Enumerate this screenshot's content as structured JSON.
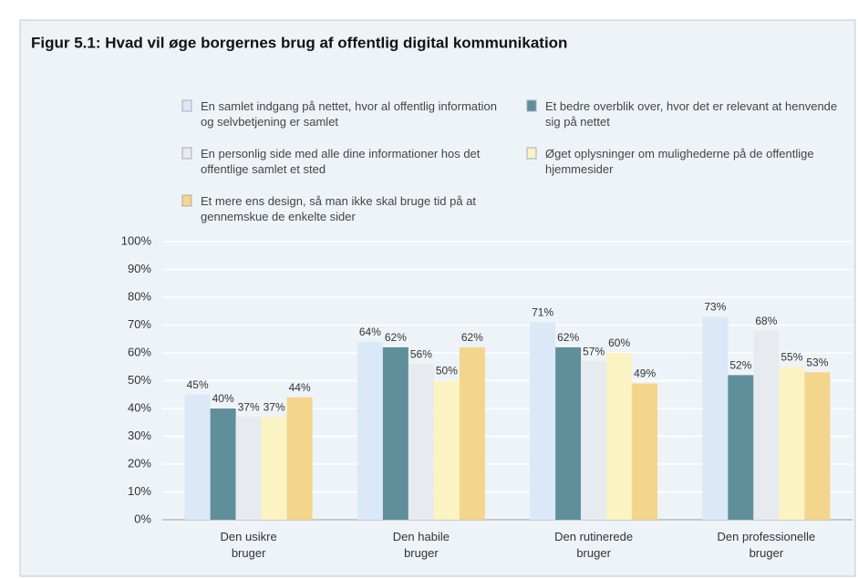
{
  "chart_data": {
    "type": "bar",
    "title": "Figur 5.1: Hvad vil øge borgernes brug af offentlig digital kommunikation",
    "categories": [
      "Den usikre bruger",
      "Den habile bruger",
      "Den rutinerede bruger",
      "Den professionelle bruger"
    ],
    "series": [
      {
        "name": "En samlet indgang på nettet, hvor al offentlig information og selvbetjening er samlet",
        "color": "#dbe8f8",
        "values": [
          45,
          64,
          71,
          73
        ],
        "value_labels": [
          "45%",
          "64%",
          "71%",
          "73%"
        ]
      },
      {
        "name": "Et bedre overblik over, hvor det er relevant at henvende sig på nettet",
        "color": "#5f8f9b",
        "values": [
          40,
          62,
          62,
          52
        ],
        "value_labels": [
          "40%",
          "62%",
          "62%",
          "52%"
        ]
      },
      {
        "name": "En personlig side med alle dine informationer hos det offentlige samlet et sted",
        "color": "#e7ebef",
        "values": [
          37,
          56,
          57,
          68
        ],
        "value_labels": [
          "37%",
          "56%",
          "57%",
          "68%"
        ]
      },
      {
        "name": "Øget oplysninger om mulighederne på de offentlige hjemmesider",
        "color": "#fbf3c2",
        "values": [
          37,
          50,
          60,
          55
        ],
        "value_labels": [
          "37%",
          "50%",
          "60%",
          "55%"
        ]
      },
      {
        "name": "Et mere ens design, så man ikke skal bruge tid på at gennemskue de enkelte sider",
        "color": "#f4d58c",
        "values": [
          44,
          62,
          49,
          53
        ],
        "value_labels": [
          "44%",
          "62%",
          "49%",
          "53%"
        ]
      }
    ],
    "ylim": [
      0,
      100
    ],
    "yticks": [
      {
        "value": 0,
        "label": "0%"
      },
      {
        "value": 10,
        "label": "10%"
      },
      {
        "value": 20,
        "label": "20%"
      },
      {
        "value": 30,
        "label": "30%"
      },
      {
        "value": 40,
        "label": "40%"
      },
      {
        "value": 50,
        "label": "50%"
      },
      {
        "value": 60,
        "label": "60%"
      },
      {
        "value": 70,
        "label": "70%"
      },
      {
        "value": 80,
        "label": "80%"
      },
      {
        "value": 90,
        "label": "90%"
      },
      {
        "value": 100,
        "label": "100%"
      }
    ],
    "grid": true
  }
}
